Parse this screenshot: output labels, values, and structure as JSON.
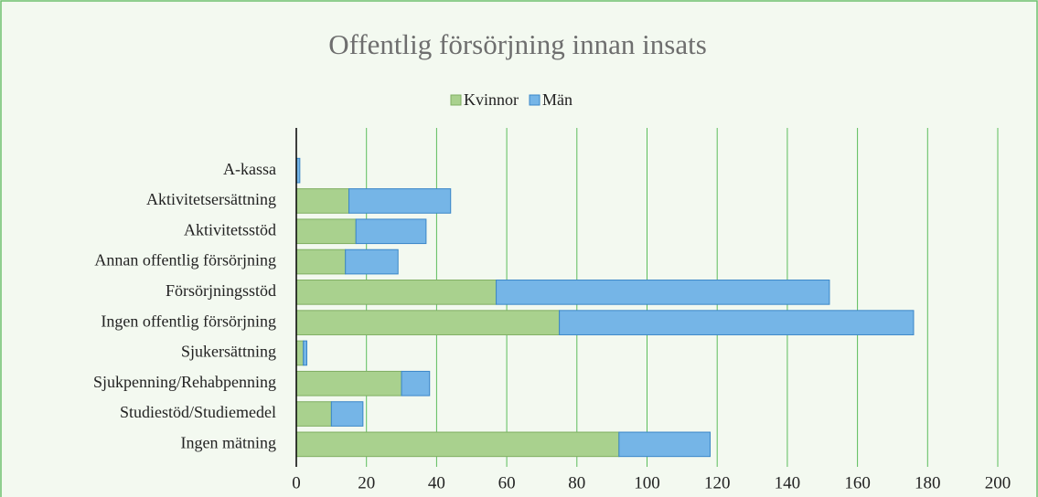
{
  "chart_data": {
    "type": "stacked_bar_horizontal",
    "title": "Offentlig försörjning innan insats",
    "categories": [
      "A-kassa",
      "Aktivitetsersättning",
      "Aktivitetsstöd",
      "Annan offentlig försörjning",
      "Försörjningsstöd",
      "Ingen offentlig försörjning",
      "Sjukersättning",
      "Sjukpenning/Rehabpenning",
      "Studiestöd/Studiemedel",
      "Ingen mätning"
    ],
    "series": [
      {
        "name": "Kvinnor",
        "color": "#a9d18e",
        "values": [
          0,
          15,
          17,
          14,
          57,
          75,
          2,
          30,
          10,
          92
        ]
      },
      {
        "name": "Män",
        "color": "#75b5e7",
        "values": [
          1,
          29,
          20,
          15,
          95,
          101,
          1,
          8,
          9,
          26
        ]
      }
    ],
    "xlim": [
      0,
      200
    ],
    "xticks": [
      0,
      20,
      40,
      60,
      80,
      100,
      120,
      140,
      160,
      180,
      200
    ],
    "grid": true,
    "legend": "top"
  }
}
